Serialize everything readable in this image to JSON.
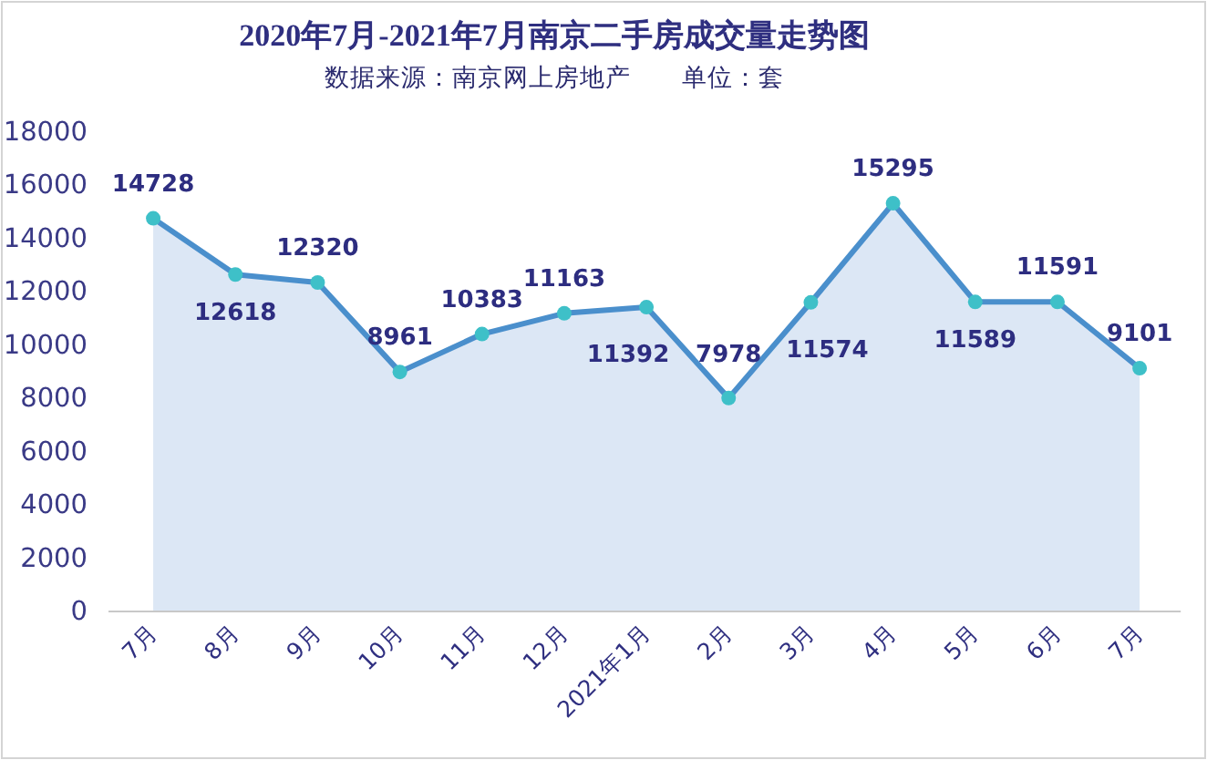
{
  "chart_data": {
    "type": "area",
    "title": "2020年7月-2021年7月南京二手房成交量走势图",
    "subtitle": "数据来源：南京网上房地产　　单位：套",
    "categories": [
      "7月",
      "8月",
      "9月",
      "10月",
      "11月",
      "12月",
      "2021年1月",
      "2月",
      "3月",
      "4月",
      "5月",
      "6月",
      "7月"
    ],
    "values": [
      14728,
      12618,
      12320,
      8961,
      10383,
      11163,
      11392,
      7978,
      11574,
      15295,
      11589,
      11591,
      9101
    ],
    "color": "#4a8fcc",
    "marker": "circle",
    "data_labels": true,
    "ylim": [
      0,
      18000
    ],
    "yticks": [
      0,
      2000,
      4000,
      6000,
      8000,
      10000,
      12000,
      14000,
      16000,
      18000
    ]
  }
}
